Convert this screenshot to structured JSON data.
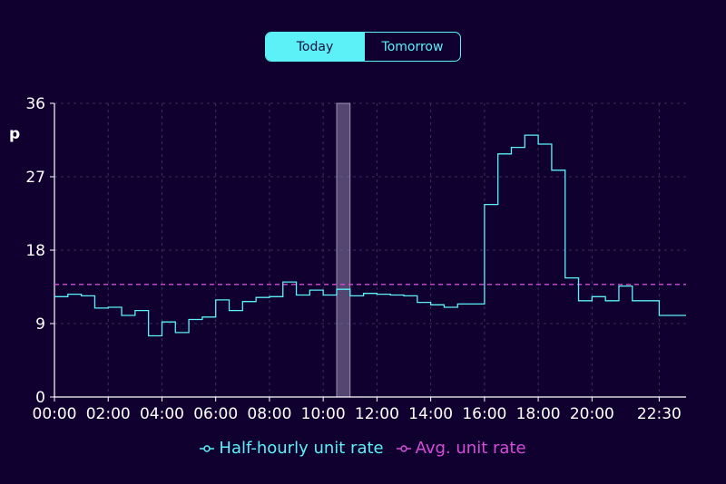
{
  "toggle": {
    "today_label": "Today",
    "tomorrow_label": "Tomorrow",
    "selected": "Today"
  },
  "colors": {
    "background": "#100030",
    "rate": "#5cf0f7",
    "average": "#d54cd8",
    "highlight": "#8a80a8"
  },
  "chart_data": {
    "type": "line",
    "step": true,
    "unit_label": "p",
    "ylim": [
      0,
      36
    ],
    "yticks": [
      0,
      9,
      18,
      27,
      36
    ],
    "x_range": [
      "00:00",
      "23:30"
    ],
    "xticks": [
      "00:00",
      "02:00",
      "04:00",
      "06:00",
      "08:00",
      "10:00",
      "12:00",
      "14:00",
      "16:00",
      "18:00",
      "20:00",
      "22:30"
    ],
    "highlight_period": [
      "10:30",
      "11:00"
    ],
    "grid": true,
    "legend_position": "bottom",
    "series": [
      {
        "name": "Half-hourly unit rate",
        "x": [
          "00:00",
          "00:30",
          "01:00",
          "01:30",
          "02:00",
          "02:30",
          "03:00",
          "03:30",
          "04:00",
          "04:30",
          "05:00",
          "05:30",
          "06:00",
          "06:30",
          "07:00",
          "07:30",
          "08:00",
          "08:30",
          "09:00",
          "09:30",
          "10:00",
          "10:30",
          "11:00",
          "11:30",
          "12:00",
          "12:30",
          "13:00",
          "13:30",
          "14:00",
          "14:30",
          "15:00",
          "15:30",
          "16:00",
          "16:30",
          "17:00",
          "17:30",
          "18:00",
          "18:30",
          "19:00",
          "19:30",
          "20:00",
          "20:30",
          "21:00",
          "21:30",
          "22:00",
          "22:30"
        ],
        "values": [
          12.3,
          12.6,
          12.4,
          10.9,
          11.0,
          10.0,
          10.6,
          7.5,
          9.2,
          7.9,
          9.5,
          9.8,
          11.9,
          10.6,
          11.7,
          12.2,
          12.3,
          14.1,
          12.5,
          13.1,
          12.5,
          13.2,
          12.4,
          12.7,
          12.6,
          12.5,
          12.4,
          11.6,
          11.3,
          11.0,
          11.4,
          11.4,
          23.6,
          29.8,
          30.6,
          32.1,
          31.0,
          27.8,
          14.6,
          11.8,
          12.3,
          11.8,
          13.6,
          11.8,
          11.8,
          10.0
        ]
      },
      {
        "name": "Avg. unit rate",
        "value": 13.8
      }
    ]
  }
}
